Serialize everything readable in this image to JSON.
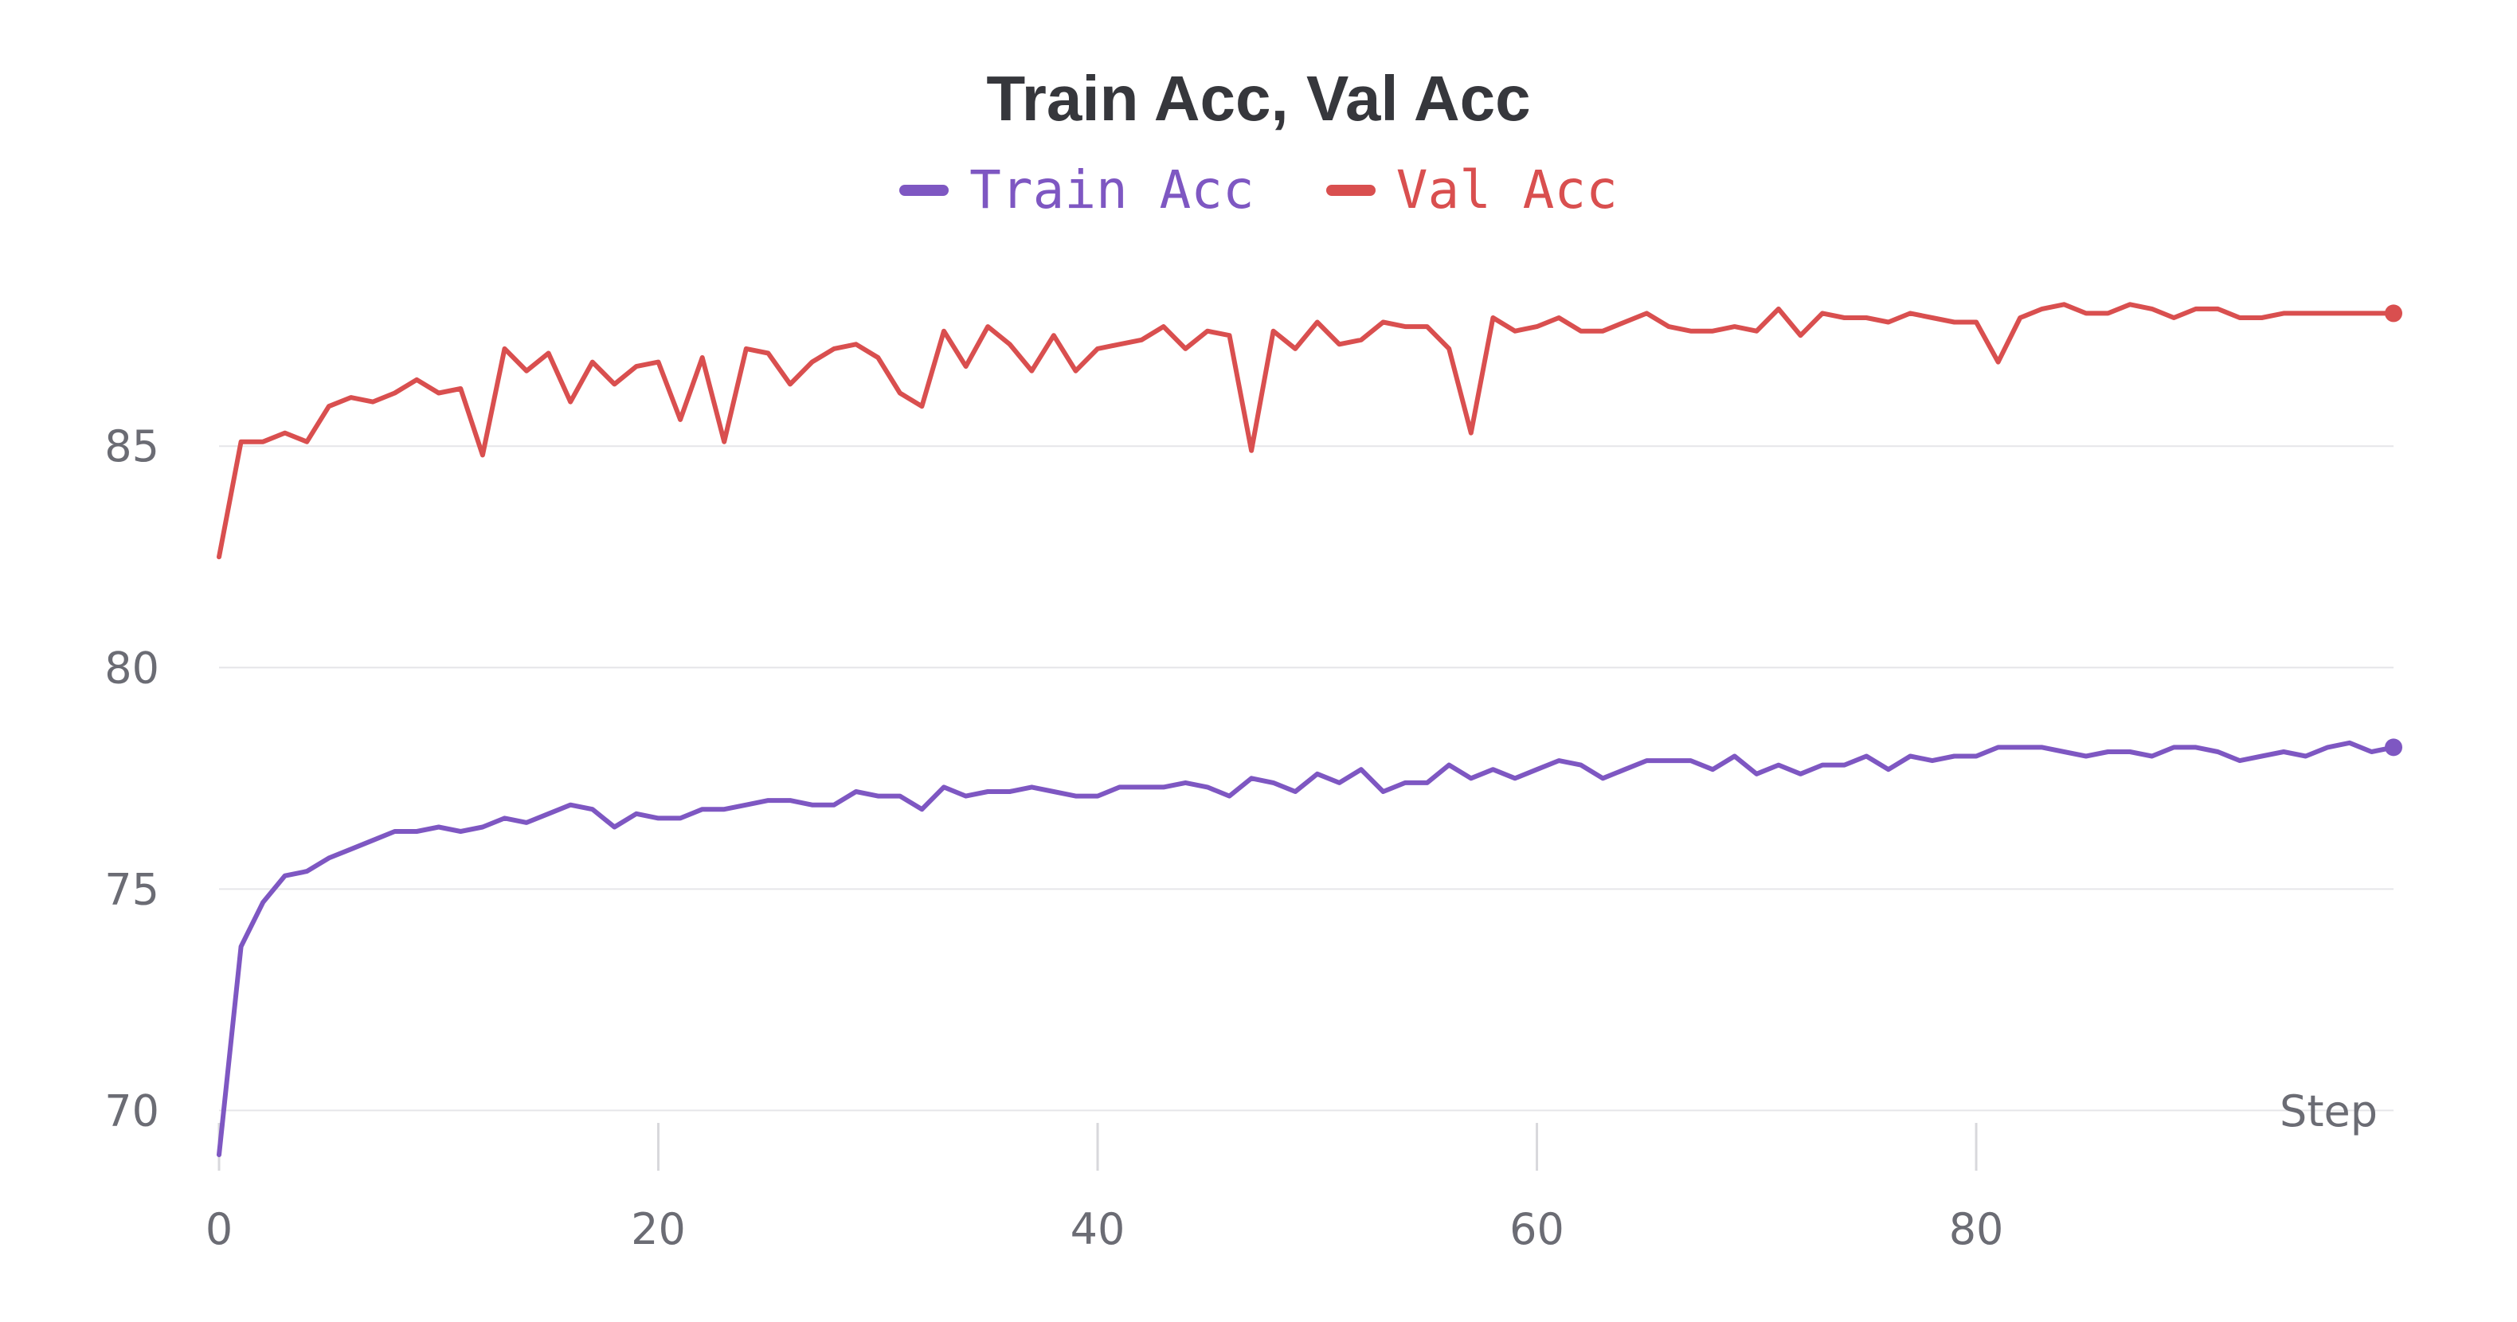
{
  "chart_data": {
    "type": "line",
    "title": "Train Acc, Val Acc",
    "xlabel": "Step",
    "ylabel": "",
    "xlim": [
      0,
      99
    ],
    "ylim": [
      69,
      89.5
    ],
    "xticks": [
      0,
      20,
      40,
      60,
      80
    ],
    "yticks": [
      70,
      75,
      80,
      85
    ],
    "grid": "horizontal",
    "legend": "top-center",
    "series": [
      {
        "name": "Train Acc",
        "color": "#7e57c2",
        "values": [
          69.0,
          73.7,
          74.7,
          75.3,
          75.4,
          75.7,
          75.9,
          76.1,
          76.3,
          76.3,
          76.4,
          76.3,
          76.4,
          76.6,
          76.5,
          76.7,
          76.9,
          76.8,
          76.4,
          76.7,
          76.6,
          76.6,
          76.8,
          76.8,
          76.9,
          77.0,
          77.0,
          76.9,
          76.9,
          77.2,
          77.1,
          77.1,
          76.8,
          77.3,
          77.1,
          77.2,
          77.2,
          77.3,
          77.2,
          77.1,
          77.1,
          77.3,
          77.3,
          77.3,
          77.4,
          77.3,
          77.1,
          77.5,
          77.4,
          77.2,
          77.6,
          77.4,
          77.7,
          77.2,
          77.4,
          77.4,
          77.8,
          77.5,
          77.7,
          77.5,
          77.7,
          77.9,
          77.8,
          77.5,
          77.7,
          77.9,
          77.9,
          77.9,
          77.7,
          78.0,
          77.6,
          77.8,
          77.6,
          77.8,
          77.8,
          78.0,
          77.7,
          78.0,
          77.9,
          78.0,
          78.0,
          78.2,
          78.2,
          78.2,
          78.1,
          78.0,
          78.1,
          78.1,
          78.0,
          78.2,
          78.2,
          78.1,
          77.9,
          78.0,
          78.1,
          78.0,
          78.2,
          78.3,
          78.1,
          78.2
        ]
      },
      {
        "name": "Val Acc",
        "color": "#d94f4f",
        "values": [
          82.5,
          85.1,
          85.1,
          85.3,
          85.1,
          85.9,
          86.1,
          86.0,
          86.2,
          86.5,
          86.2,
          86.3,
          84.8,
          87.2,
          86.7,
          87.1,
          86.0,
          86.9,
          86.4,
          86.8,
          86.9,
          85.6,
          87.0,
          85.1,
          87.2,
          87.1,
          86.4,
          86.9,
          87.2,
          87.3,
          87.0,
          86.2,
          85.9,
          87.6,
          86.8,
          87.7,
          87.3,
          86.7,
          87.5,
          86.7,
          87.2,
          87.3,
          87.4,
          87.7,
          87.2,
          87.6,
          87.5,
          84.9,
          87.6,
          87.2,
          87.8,
          87.3,
          87.4,
          87.8,
          87.7,
          87.7,
          87.2,
          85.3,
          87.9,
          87.6,
          87.7,
          87.9,
          87.6,
          87.6,
          87.8,
          88.0,
          87.7,
          87.6,
          87.6,
          87.7,
          87.6,
          88.1,
          87.5,
          88.0,
          87.9,
          87.9,
          87.8,
          88.0,
          87.9,
          87.8,
          87.8,
          86.9,
          87.9,
          88.1,
          88.2,
          88.0,
          88.0,
          88.2,
          88.1,
          87.9,
          88.1,
          88.1,
          87.9,
          87.9,
          88.0,
          88.0,
          88.0,
          88.0,
          88.0,
          88.0
        ]
      }
    ]
  }
}
